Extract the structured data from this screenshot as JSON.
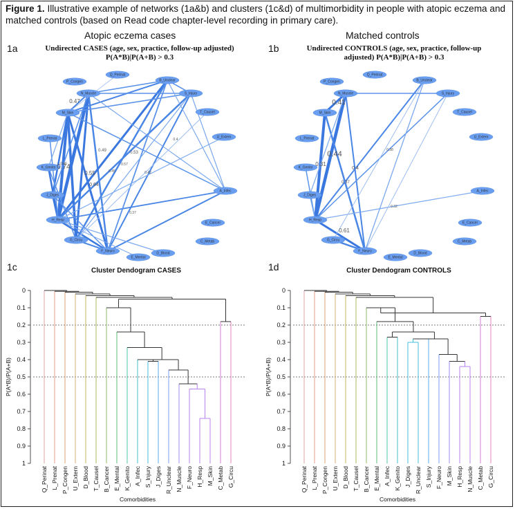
{
  "caption": {
    "figure_no": "Figure 1.",
    "text": "Illustrative example of networks (1a&b) and clusters (1c&d) of multimorbidity in people with atopic eczema and matched controls (based on Read code chapter-level recording in primary care)."
  },
  "subtitles": {
    "left": "Atopic eczema cases",
    "right": "Matched controls"
  },
  "panels": {
    "a": {
      "label": "1a",
      "title_line1": "Undirected CASES (age, sex, practice, follow-up adjusted)",
      "title_line2": "P(A*B)|P(A+B) > 0.3"
    },
    "b": {
      "label": "1b",
      "title_line1": "Undirected CONTROLS (age, sex, practice, follow-up",
      "title_line2": "adjusted) P(A*B)|P(A+B) > 0.3"
    },
    "c": {
      "label": "1c",
      "title": "Cluster Dendogram CASES"
    },
    "d": {
      "label": "1d",
      "title": "Cluster Dendogram CONTROLS"
    }
  },
  "network_nodes": [
    "Q_Perinat",
    "P_Congen",
    "B_Unclear",
    "N_Muscle",
    "S_Injury",
    "M_Skin",
    "T_Causel",
    "L_Prenat",
    "U_Extern",
    "K_Genito",
    "J_Diges",
    "A_Infec",
    "H_Resp",
    "E_Cancer",
    "G_Circu",
    "C_Metab",
    "F_Neuro",
    "D_Blood",
    "E_Mental"
  ],
  "network_edge_labels_a": [
    "0.47",
    "0.74",
    "0.49",
    "0.53",
    "0.64",
    "0.4",
    "0.46",
    "0.45",
    "0.57",
    "0.42",
    "0.55",
    "0.37"
  ],
  "network_edge_labels_b": [
    "0.41",
    "0.44",
    "0.31",
    "0.37",
    "0.38",
    "0.4",
    "0.32",
    "0.61"
  ],
  "chart_data": [
    {
      "type": "dendrogram",
      "title": "Cluster Dendogram CASES",
      "ylabel": "P(A*B)/P(A+B)",
      "xlabel": "Comorbidities",
      "y_ticks": [
        "0",
        "0.1",
        "0.2",
        "0.3",
        "0.4",
        "0.5",
        "0.6",
        "0.7",
        "0.8",
        "0.9",
        "1"
      ],
      "ylim": [
        1,
        0
      ],
      "cut_lines": [
        0.2,
        0.5
      ],
      "leaves": [
        "Q_Perinat",
        "L_Prenat",
        "P_Congen",
        "U_Extern",
        "D_Blood",
        "T_Causel",
        "B_Cancer",
        "E_Mental",
        "K_Genito",
        "A_Infec",
        "S_Injury",
        "J_Diges",
        "R_Unclear",
        "N_Muscle",
        "F_Neuro",
        "H_Resp",
        "M_Skin",
        "C_Metab",
        "G_Circu"
      ],
      "merges": [
        {
          "a": 15,
          "b": 16,
          "h": 0.74
        },
        {
          "a": 14,
          "b": "m0",
          "h": 0.57
        },
        {
          "a": 13,
          "b": "m1",
          "h": 0.54
        },
        {
          "a": 12,
          "b": "m2",
          "h": 0.46
        },
        {
          "a": 10,
          "b": 11,
          "h": 0.41
        },
        {
          "a": 9,
          "b": "m4",
          "h": 0.4
        },
        {
          "a": "m5",
          "b": "m3",
          "h": 0.4
        },
        {
          "a": 8,
          "b": "m6",
          "h": 0.33
        },
        {
          "a": 7,
          "b": "m7",
          "h": 0.24
        },
        {
          "a": 17,
          "b": 18,
          "h": 0.18
        },
        {
          "a": 6,
          "b": "m8",
          "h": 0.1
        },
        {
          "a": "m10",
          "b": "m9",
          "h": 0.05
        },
        {
          "a": 5,
          "b": "m11",
          "h": 0.04
        },
        {
          "a": 4,
          "b": "m12",
          "h": 0.03
        },
        {
          "a": 3,
          "b": "m13",
          "h": 0.02
        },
        {
          "a": 2,
          "b": "m14",
          "h": 0.01
        },
        {
          "a": 1,
          "b": "m15",
          "h": 0.005
        },
        {
          "a": 0,
          "b": "m16",
          "h": 0.0
        }
      ]
    },
    {
      "type": "dendrogram",
      "title": "Cluster Dendogram CONTROLS",
      "ylabel": "P(A*B)/P(A+B)",
      "xlabel": "Comorbidities",
      "y_ticks": [
        "0",
        "0.1",
        "0.2",
        "0.3",
        "0.4",
        "0.5",
        "0.6",
        "0.7",
        "0.8",
        "0.9",
        "1"
      ],
      "ylim": [
        1,
        0
      ],
      "cut_lines": [
        0.2,
        0.5
      ],
      "leaves": [
        "Q_Perinat",
        "L_Prenat",
        "P_Congen",
        "U_Extern",
        "D_Blood",
        "T_Causel",
        "B_Cancer",
        "E_Mental",
        "A_Infec",
        "K_Genito",
        "J_Diges",
        "R_Unclear",
        "S_Injury",
        "F_Neuro",
        "M_Skin",
        "H_Resp",
        "N_Muscle",
        "C_Metab",
        "G_Circu"
      ],
      "merges": [
        {
          "a": 15,
          "b": 16,
          "h": 0.44
        },
        {
          "a": 14,
          "b": "m0",
          "h": 0.41
        },
        {
          "a": 13,
          "b": "m1",
          "h": 0.37
        },
        {
          "a": 10,
          "b": 11,
          "h": 0.3
        },
        {
          "a": "m3",
          "b": 12,
          "h": 0.28
        },
        {
          "a": "m4",
          "b": "m2",
          "h": 0.28
        },
        {
          "a": 8,
          "b": 9,
          "h": 0.27
        },
        {
          "a": "m6",
          "b": "m5",
          "h": 0.24
        },
        {
          "a": 7,
          "b": "m7",
          "h": 0.18
        },
        {
          "a": 17,
          "b": 18,
          "h": 0.15
        },
        {
          "a": 6,
          "b": "m8",
          "h": 0.1
        },
        {
          "a": "m10",
          "b": "m9",
          "h": 0.13
        },
        {
          "a": 5,
          "b": "m11",
          "h": 0.04
        },
        {
          "a": 4,
          "b": "m12",
          "h": 0.03
        },
        {
          "a": 3,
          "b": "m13",
          "h": 0.02
        },
        {
          "a": 2,
          "b": "m14",
          "h": 0.01
        },
        {
          "a": 1,
          "b": "m15",
          "h": 0.005
        },
        {
          "a": 0,
          "b": "m16",
          "h": 0.0
        }
      ]
    }
  ],
  "leaf_colors": {
    "cases": [
      "#e0a0a0",
      "#e79a8a",
      "#d9a070",
      "#d4b070",
      "#c3b55e",
      "#a9b85e",
      "#8cbd64",
      "#5dbf78",
      "#4ec5a7",
      "#41c1c6",
      "#43bde0",
      "#58aef0",
      "#7d9ef5",
      "#9c8ef3",
      "#b883ec",
      "#b883ec",
      "#b883ec",
      "#d47fd6",
      "#e085c2"
    ],
    "controls": [
      "#e0a0a0",
      "#e79a8a",
      "#d9a070",
      "#d4b070",
      "#c3b55e",
      "#a9b85e",
      "#8cbd64",
      "#5dbf78",
      "#4ec5a7",
      "#41c1c6",
      "#43bde0",
      "#43bde0",
      "#58aef0",
      "#7d9ef5",
      "#9c8ef3",
      "#b883ec",
      "#b883ec",
      "#d47fd6",
      "#e085c2"
    ]
  }
}
